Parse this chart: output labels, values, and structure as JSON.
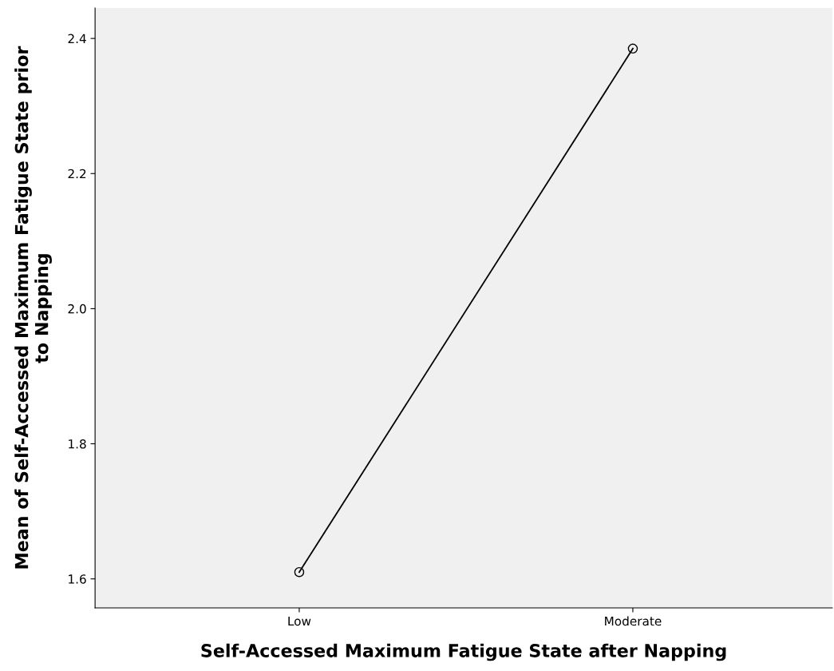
{
  "chart_data": {
    "type": "line",
    "xlabel": "Self-Accessed Maximum Fatigue State after Napping",
    "ylabel": "Mean of Self-Accessed Maximum Fatigue State prior\nto Napping",
    "categories": [
      "Low",
      "Moderate"
    ],
    "series": [
      {
        "color": "#000000",
        "values": [
          1.61,
          2.385
        ]
      }
    ],
    "ylim": [
      1.557,
      2.445
    ],
    "yticks": [
      1.6,
      1.8,
      {
        "value": 2,
        "label": "2.0"
      },
      2.2,
      2.4
    ],
    "marker": "circle",
    "line_style": "solid",
    "grid": false,
    "legend": false
  }
}
